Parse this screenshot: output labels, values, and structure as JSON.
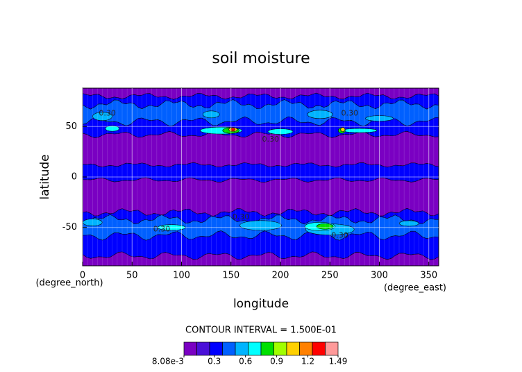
{
  "chart_data": {
    "type": "contour",
    "title": "soil moisture",
    "x_label": "longitude",
    "y_label": "latitude",
    "x_units": "(degree_east)",
    "y_units": "(degree_north)",
    "xlim": [
      0,
      360
    ],
    "xticks": [
      0,
      50,
      100,
      150,
      200,
      250,
      300,
      350
    ],
    "ylim": [
      -88,
      88
    ],
    "yticks": [
      -50,
      0,
      50
    ],
    "grid": true,
    "contour_interval": "CONTOUR INTERVAL = 1.500E-01",
    "contour_labels": [
      {
        "value": 0.3,
        "label": "0.30"
      },
      {
        "value": 0.3,
        "label": "0.30"
      },
      {
        "value": 0.3,
        "label": "0.30"
      },
      {
        "value": 0.3,
        "label": "0.30"
      },
      {
        "value": 0.3,
        "label": "0.30"
      },
      {
        "value": 0.3,
        "label": "0.30"
      }
    ],
    "colorbar": {
      "range": [
        0.00808,
        1.49
      ],
      "colors": [
        "#7a00c2",
        "#4a10d8",
        "#0000ff",
        "#0060ff",
        "#00b4ff",
        "#00ffff",
        "#00e000",
        "#a0ff00",
        "#ffd000",
        "#ff8000",
        "#ff0000",
        "#ff9a9a"
      ],
      "ticks": [
        {
          "value": 0.00808,
          "label": "8.08e-3"
        },
        0.3,
        0.6,
        0.9,
        1.2,
        1.49
      ]
    }
  }
}
